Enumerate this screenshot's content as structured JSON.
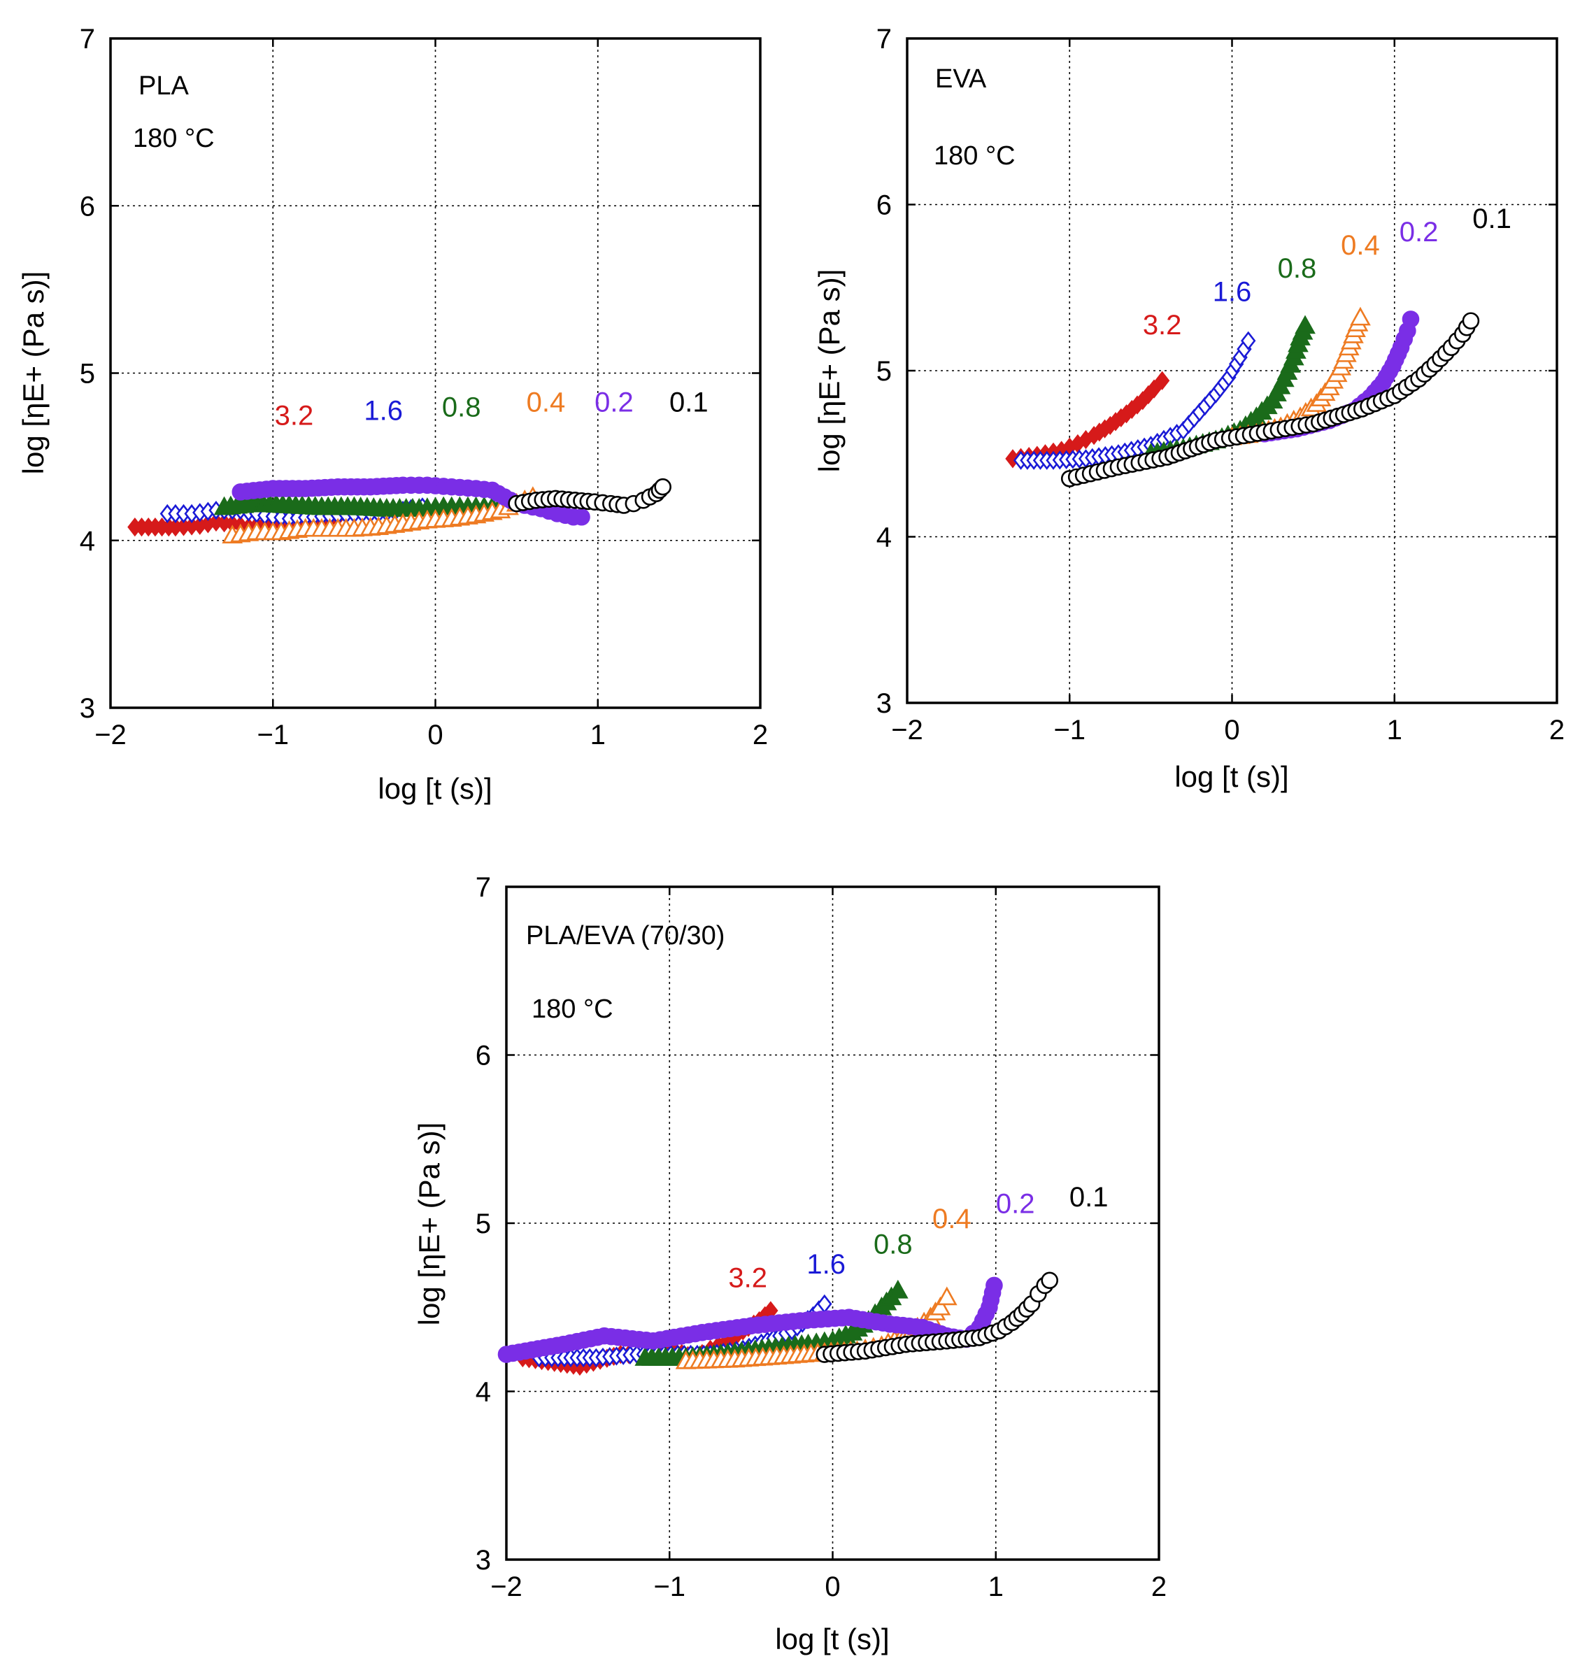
{
  "series_colors": {
    "0.1": "#000000",
    "0.2": "#7a2ee6",
    "0.4": "#ee7b22",
    "0.8": "#1a6b1a",
    "1.6": "#1a1ad6",
    "3.2": "#d61a1a"
  },
  "series_markers": {
    "0.1": "circle-open",
    "0.2": "circle-filled",
    "0.4": "triangle-open",
    "0.8": "triangle-filled",
    "1.6": "diamond-open",
    "3.2": "diamond-filled"
  },
  "chart_data": [
    {
      "type": "scatter",
      "title": "PLA",
      "annotation_sample": "PLA",
      "annotation_temp": "180 °C",
      "xlabel": "log [t (s)]",
      "ylabel": "log [ηE+ (Pa s)]",
      "xlim": [
        -2,
        2
      ],
      "ylim": [
        3,
        7
      ],
      "xticks": [
        "−2",
        "−1",
        "0",
        "1",
        "2"
      ],
      "yticks": [
        "3",
        "4",
        "5",
        "6",
        "7"
      ],
      "grid": true,
      "rate_labels": [
        {
          "text": "3.2",
          "x": -0.87,
          "y": 4.69
        },
        {
          "text": "1.6",
          "x": -0.32,
          "y": 4.72
        },
        {
          "text": "0.8",
          "x": 0.16,
          "y": 4.74
        },
        {
          "text": "0.4",
          "x": 0.68,
          "y": 4.77
        },
        {
          "text": "0.2",
          "x": 1.1,
          "y": 4.77
        },
        {
          "text": "0.1",
          "x": 1.56,
          "y": 4.77
        }
      ],
      "series": [
        {
          "name": "3.2",
          "x": [
            -1.85,
            -1.6,
            -1.45,
            -1.35,
            -1.25,
            -1.15,
            -1.05,
            -0.95,
            -0.85,
            -0.75,
            -0.65,
            -0.6,
            -0.55
          ],
          "y": [
            4.08,
            4.08,
            4.09,
            4.11,
            4.1,
            4.08,
            4.1,
            4.1,
            4.11,
            4.1,
            4.12,
            4.14,
            4.16
          ]
        },
        {
          "name": "1.6",
          "x": [
            -1.65,
            -1.5,
            -1.35,
            -1.2,
            -1.05,
            -0.9,
            -0.75,
            -0.6,
            -0.45,
            -0.35,
            -0.25,
            -0.15,
            -0.08
          ],
          "y": [
            4.16,
            4.16,
            4.18,
            4.18,
            4.15,
            4.13,
            4.14,
            4.15,
            4.16,
            4.16,
            4.17,
            4.19,
            4.2
          ]
        },
        {
          "name": "0.8",
          "x": [
            -1.3,
            -1.1,
            -0.9,
            -0.7,
            -0.5,
            -0.3,
            -0.1,
            0.05,
            0.15,
            0.25,
            0.35,
            0.4
          ],
          "y": [
            4.2,
            4.22,
            4.21,
            4.2,
            4.2,
            4.19,
            4.19,
            4.2,
            4.2,
            4.2,
            4.2,
            4.21
          ]
        },
        {
          "name": "0.4",
          "x": [
            -1.25,
            -1.1,
            -0.95,
            -0.8,
            -0.65,
            -0.5,
            -0.35,
            -0.2,
            -0.05,
            0.1,
            0.25,
            0.4,
            0.5,
            0.55,
            0.6
          ],
          "y": [
            4.03,
            4.05,
            4.05,
            4.07,
            4.07,
            4.07,
            4.08,
            4.1,
            4.12,
            4.13,
            4.15,
            4.18,
            4.22,
            4.24,
            4.26
          ]
        },
        {
          "name": "0.2",
          "x": [
            -1.2,
            -1.0,
            -0.8,
            -0.6,
            -0.4,
            -0.2,
            -0.05,
            0.1,
            0.25,
            0.35,
            0.5,
            0.65,
            0.75,
            0.85,
            0.9
          ],
          "y": [
            4.29,
            4.31,
            4.31,
            4.32,
            4.32,
            4.33,
            4.33,
            4.32,
            4.31,
            4.3,
            4.22,
            4.19,
            4.16,
            4.14,
            4.14
          ]
        },
        {
          "name": "0.1",
          "x": [
            0.5,
            0.62,
            0.74,
            0.86,
            0.98,
            1.08,
            1.16,
            1.22,
            1.28,
            1.32,
            1.36,
            1.38,
            1.4
          ],
          "y": [
            4.22,
            4.24,
            4.25,
            4.24,
            4.23,
            4.22,
            4.21,
            4.22,
            4.24,
            4.26,
            4.28,
            4.3,
            4.32
          ]
        }
      ]
    },
    {
      "type": "scatter",
      "title": "EVA",
      "annotation_sample": "EVA",
      "annotation_temp": "180 °C",
      "xlabel": "log [t (s)]",
      "ylabel": "log [ηE+ (Pa s)]",
      "xlim": [
        -2,
        2
      ],
      "ylim": [
        3,
        7
      ],
      "xticks": [
        "−2",
        "−1",
        "0",
        "1",
        "2"
      ],
      "yticks": [
        "3",
        "4",
        "5",
        "6",
        "7"
      ],
      "grid": true,
      "rate_labels": [
        {
          "text": "3.2",
          "x": -0.43,
          "y": 5.22
        },
        {
          "text": "1.6",
          "x": 0.0,
          "y": 5.42
        },
        {
          "text": "0.8",
          "x": 0.4,
          "y": 5.56
        },
        {
          "text": "0.4",
          "x": 0.79,
          "y": 5.7
        },
        {
          "text": "0.2",
          "x": 1.15,
          "y": 5.78
        },
        {
          "text": "0.1",
          "x": 1.6,
          "y": 5.86
        }
      ],
      "series": [
        {
          "name": "3.2",
          "x": [
            -1.35,
            -1.2,
            -1.05,
            -0.95,
            -0.85,
            -0.75,
            -0.65,
            -0.55,
            -0.48,
            -0.43
          ],
          "y": [
            4.47,
            4.49,
            4.52,
            4.56,
            4.61,
            4.67,
            4.74,
            4.82,
            4.89,
            4.94
          ]
        },
        {
          "name": "1.6",
          "x": [
            -1.3,
            -1.1,
            -0.9,
            -0.7,
            -0.5,
            -0.3,
            -0.2,
            -0.1,
            -0.02,
            0.05,
            0.1
          ],
          "y": [
            4.46,
            4.46,
            4.47,
            4.5,
            4.55,
            4.64,
            4.75,
            4.86,
            4.96,
            5.08,
            5.18
          ]
        },
        {
          "name": "0.8",
          "x": [
            -0.5,
            -0.3,
            -0.1,
            0.05,
            0.15,
            0.25,
            0.32,
            0.38,
            0.42,
            0.45
          ],
          "y": [
            4.5,
            4.53,
            4.58,
            4.64,
            4.72,
            4.82,
            4.95,
            5.08,
            5.2,
            5.27
          ]
        },
        {
          "name": "0.4",
          "x": [
            0.0,
            0.15,
            0.3,
            0.42,
            0.52,
            0.6,
            0.67,
            0.72,
            0.76,
            0.79
          ],
          "y": [
            4.6,
            4.62,
            4.66,
            4.72,
            4.8,
            4.9,
            5.02,
            5.14,
            5.25,
            5.32
          ]
        },
        {
          "name": "0.2",
          "x": [
            0.2,
            0.4,
            0.6,
            0.75,
            0.85,
            0.93,
            0.99,
            1.04,
            1.08,
            1.1
          ],
          "y": [
            4.62,
            4.65,
            4.7,
            4.76,
            4.84,
            4.93,
            5.03,
            5.14,
            5.24,
            5.31
          ]
        },
        {
          "name": "0.1",
          "x": [
            -1.0,
            -0.7,
            -0.4,
            -0.1,
            0.2,
            0.5,
            0.8,
            1.0,
            1.15,
            1.25,
            1.35,
            1.42,
            1.47
          ],
          "y": [
            4.35,
            4.42,
            4.48,
            4.58,
            4.63,
            4.68,
            4.77,
            4.85,
            4.95,
            5.04,
            5.14,
            5.22,
            5.3
          ]
        }
      ]
    },
    {
      "type": "scatter",
      "title": "PLA/EVA (70/30)",
      "annotation_sample": "PLA/EVA (70/30)",
      "annotation_temp": "180 °C",
      "xlabel": "log [t (s)]",
      "ylabel": "log [ηE+ (Pa s)]",
      "xlim": [
        -2,
        2
      ],
      "ylim": [
        3,
        7
      ],
      "xticks": [
        "−2",
        "−1",
        "0",
        "1",
        "2"
      ],
      "yticks": [
        "3",
        "4",
        "5",
        "6",
        "7"
      ],
      "grid": true,
      "rate_labels": [
        {
          "text": "3.2",
          "x": -0.52,
          "y": 4.62
        },
        {
          "text": "1.6",
          "x": -0.04,
          "y": 4.7
        },
        {
          "text": "0.8",
          "x": 0.37,
          "y": 4.82
        },
        {
          "text": "0.4",
          "x": 0.73,
          "y": 4.97
        },
        {
          "text": "0.2",
          "x": 1.12,
          "y": 5.06
        },
        {
          "text": "0.1",
          "x": 1.57,
          "y": 5.1
        }
      ],
      "series": [
        {
          "name": "3.2",
          "x": [
            -1.9,
            -1.55,
            -1.3,
            -1.15,
            -1.0,
            -0.85,
            -0.75,
            -0.65,
            -0.55,
            -0.45,
            -0.38
          ],
          "y": [
            4.2,
            4.15,
            4.22,
            4.22,
            4.25,
            4.2,
            4.25,
            4.3,
            4.36,
            4.42,
            4.48
          ]
        },
        {
          "name": "1.6",
          "x": [
            -1.8,
            -1.45,
            -1.2,
            -0.95,
            -0.75,
            -0.55,
            -0.4,
            -0.25,
            -0.12,
            -0.05
          ],
          "y": [
            4.2,
            4.2,
            4.22,
            4.22,
            4.22,
            4.25,
            4.3,
            4.36,
            4.45,
            4.52
          ]
        },
        {
          "name": "0.8",
          "x": [
            -1.15,
            -0.9,
            -0.6,
            -0.35,
            -0.15,
            0.0,
            0.12,
            0.22,
            0.3,
            0.36,
            0.4
          ],
          "y": [
            4.2,
            4.2,
            4.23,
            4.26,
            4.28,
            4.3,
            4.35,
            4.42,
            4.5,
            4.56,
            4.6
          ]
        },
        {
          "name": "0.4",
          "x": [
            -0.9,
            -0.6,
            -0.3,
            -0.05,
            0.15,
            0.3,
            0.42,
            0.52,
            0.6,
            0.66,
            0.7
          ],
          "y": [
            4.18,
            4.19,
            4.21,
            4.23,
            4.24,
            4.27,
            4.32,
            4.38,
            4.44,
            4.5,
            4.56
          ]
        },
        {
          "name": "0.2",
          "x": [
            -2.0,
            -1.65,
            -1.4,
            -1.1,
            -0.8,
            -0.5,
            -0.2,
            0.1,
            0.35,
            0.55,
            0.7,
            0.82,
            0.9,
            0.96,
            0.99
          ],
          "y": [
            4.22,
            4.28,
            4.33,
            4.3,
            4.35,
            4.39,
            4.42,
            4.44,
            4.4,
            4.38,
            4.33,
            4.31,
            4.38,
            4.5,
            4.63
          ]
        },
        {
          "name": "0.1",
          "x": [
            -0.05,
            0.2,
            0.45,
            0.7,
            0.9,
            1.02,
            1.1,
            1.16,
            1.22,
            1.26,
            1.3,
            1.33
          ],
          "y": [
            4.22,
            4.24,
            4.28,
            4.3,
            4.32,
            4.36,
            4.41,
            4.46,
            4.52,
            4.58,
            4.63,
            4.66
          ]
        }
      ]
    }
  ]
}
